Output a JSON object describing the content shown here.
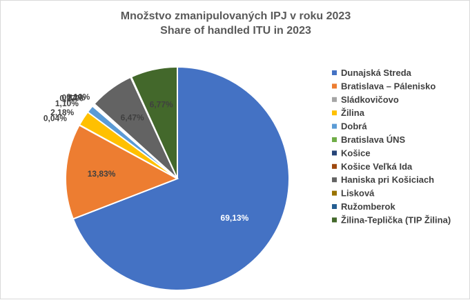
{
  "chart_data": {
    "type": "pie",
    "title": "Množstvo zmanipulovaných IPJ v roku 2023",
    "subtitle": "Share of handled ITU in 2023",
    "legend_position": "right",
    "categories": [
      "Dunajská Streda",
      "Bratislava – Pálenisko",
      "Sládkovičovo",
      "Žilina",
      "Dobrá",
      "Bratislava ÚNS",
      "Košice",
      "Košice Veľká Ida",
      "Haniska pri Košiciach",
      "Lisková",
      "Ružomberok",
      "Žilina-Teplička (TIP Žilina)"
    ],
    "values": [
      69.13,
      13.83,
      0.04,
      2.18,
      1.1,
      0.17,
      0.12,
      0.1,
      6.47,
      0.09,
      0.01,
      6.77
    ],
    "data_labels": [
      "69,13%",
      "13,83%",
      "0,04%",
      "2,18%",
      "1,10%",
      "0,17%",
      "0,12%",
      "0,10%",
      "6,47%",
      "",
      "",
      "6,77%"
    ],
    "colors": [
      "#4472c4",
      "#ed7d31",
      "#a5a5a5",
      "#ffc000",
      "#5b9bd5",
      "#70ad47",
      "#264478",
      "#9e480e",
      "#636363",
      "#997300",
      "#255e91",
      "#43682b"
    ]
  }
}
